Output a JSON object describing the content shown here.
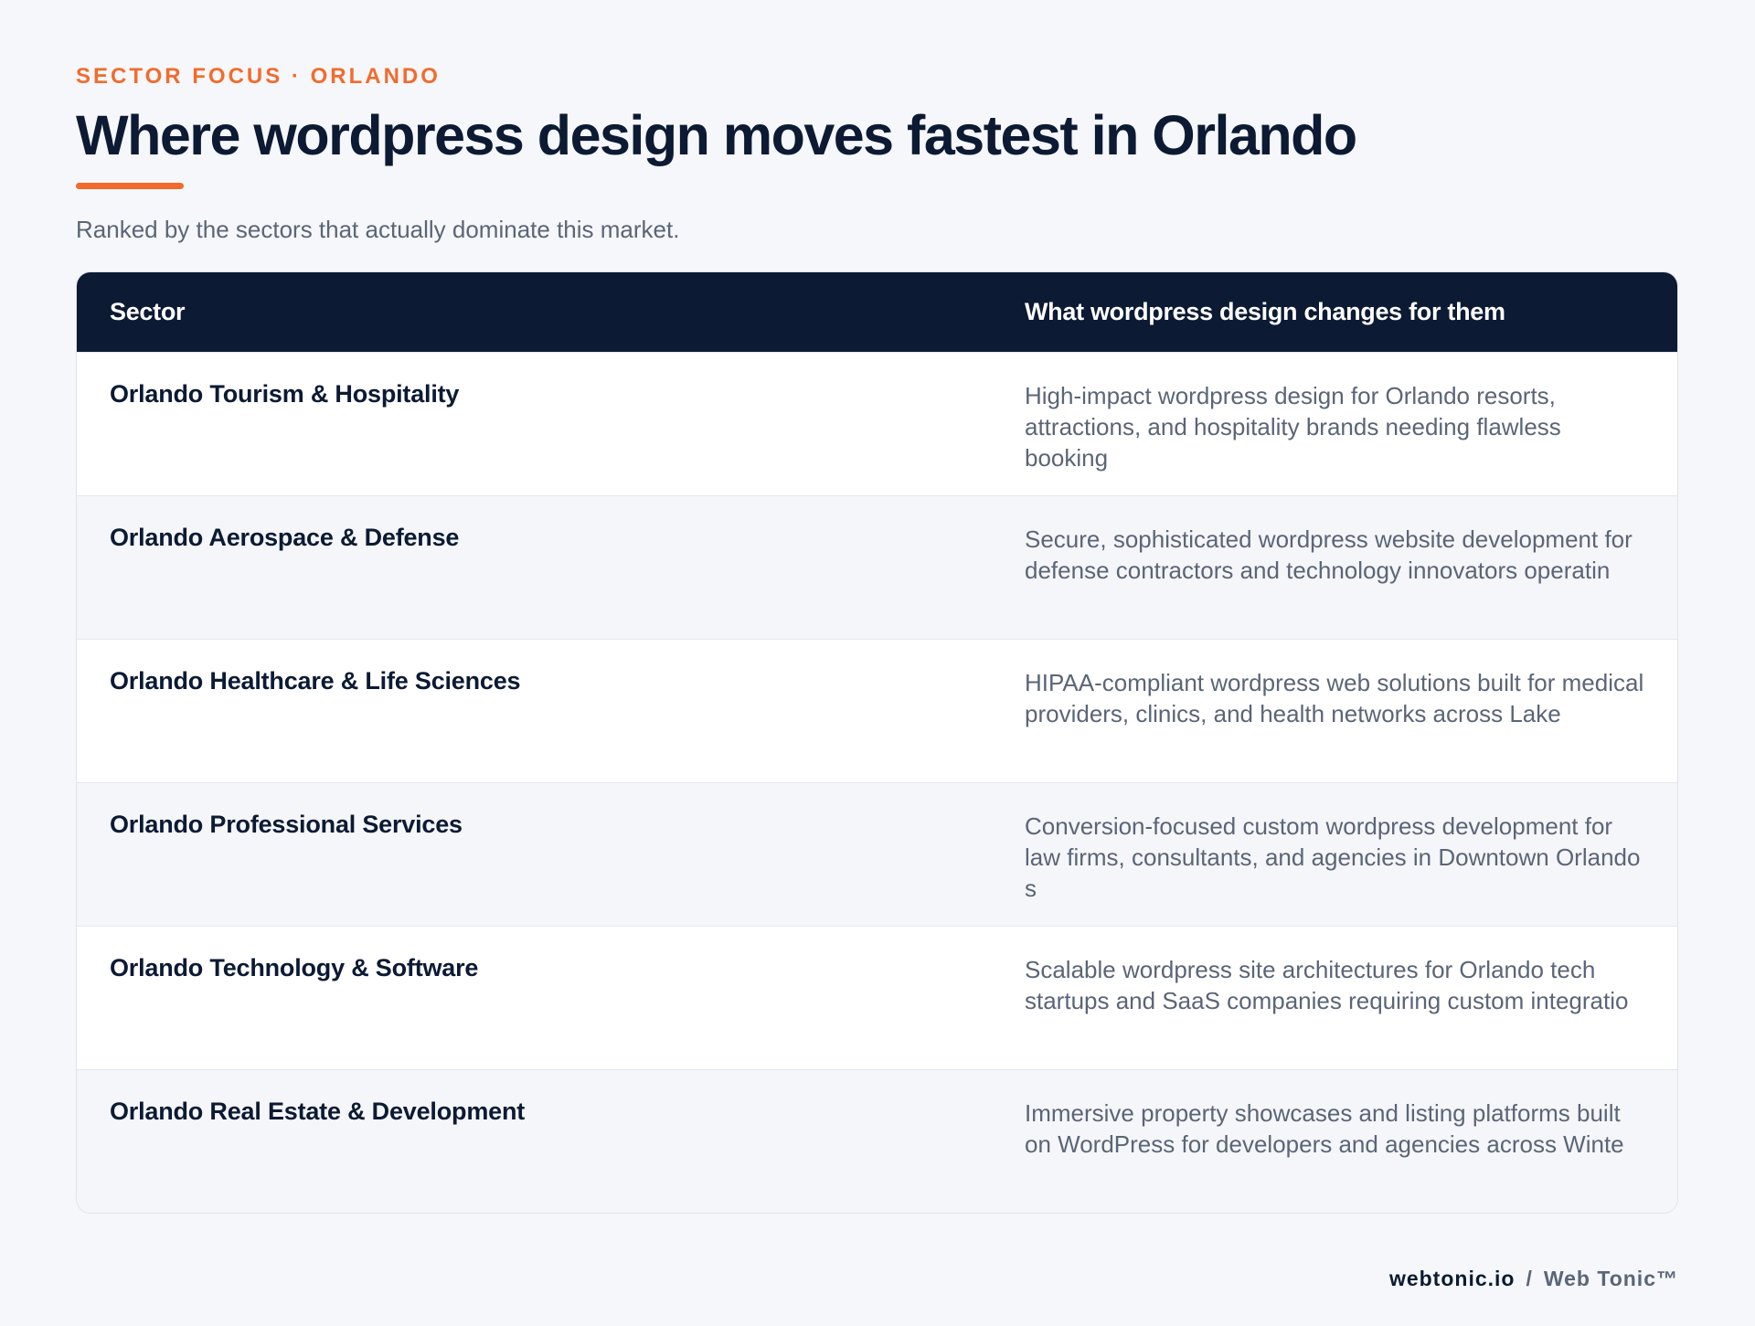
{
  "header": {
    "eyebrow": "SECTOR FOCUS · ORLANDO",
    "title": "Where wordpress design moves fastest in Orlando",
    "subtitle": "Ranked by the sectors that actually dominate this market.",
    "accent_color": "#f26b2d"
  },
  "table": {
    "columns": [
      "Sector",
      "What wordpress design changes for them"
    ],
    "rows": [
      {
        "sector": "Orlando Tourism & Hospitality",
        "change": "High-impact wordpress design for Orlando resorts, attractions, and hospitality brands needing flawless booking"
      },
      {
        "sector": "Orlando Aerospace & Defense",
        "change": "Secure, sophisticated wordpress website development for defense contractors and technology innovators operatin"
      },
      {
        "sector": "Orlando Healthcare & Life Sciences",
        "change": "HIPAA-compliant wordpress web solutions built for medical providers, clinics, and health networks across Lake"
      },
      {
        "sector": "Orlando Professional Services",
        "change": "Conversion-focused custom wordpress development for law firms, consultants, and agencies in Downtown Orlando s"
      },
      {
        "sector": "Orlando Technology & Software",
        "change": "Scalable wordpress site architectures for Orlando tech startups and SaaS companies requiring custom integratio"
      },
      {
        "sector": "Orlando Real Estate & Development",
        "change": "Immersive property showcases and listing platforms built on WordPress for developers and agencies across Winte"
      }
    ]
  },
  "footer": {
    "domain": "webtonic.io",
    "separator": "/",
    "brand": "Web Tonic™"
  },
  "colors": {
    "navy": "#0c1a33",
    "orange": "#f26b2d",
    "muted": "#5b6577",
    "background": "#f6f7fa"
  }
}
